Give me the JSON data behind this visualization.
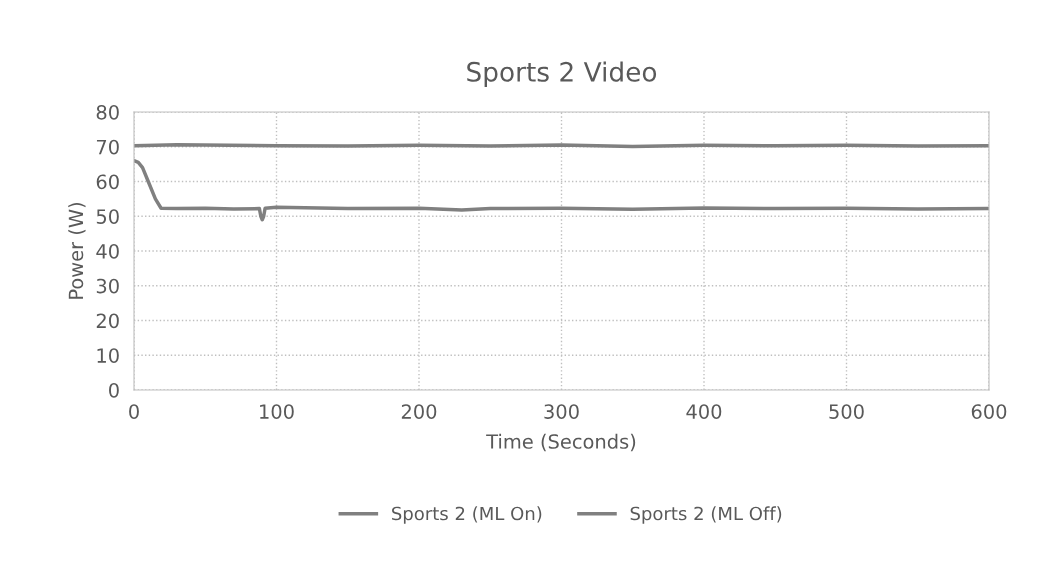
{
  "chart_data": {
    "type": "line",
    "title": "Sports 2 Video",
    "xlabel": "Time (Seconds)",
    "ylabel": "Power (W)",
    "xlim": [
      0,
      600
    ],
    "xticks": [
      0,
      100,
      200,
      300,
      400,
      500,
      600
    ],
    "ylim": [
      0,
      80
    ],
    "yticks": [
      0,
      10,
      20,
      30,
      40,
      50,
      60,
      70,
      80
    ],
    "grid": true,
    "legend": "bottom",
    "marker": "none",
    "line_style": "solid",
    "series": [
      {
        "name": "Sports 2 (ML On)",
        "color": "#808080",
        "x": [
          0,
          3,
          6,
          10,
          15,
          19,
          30,
          50,
          70,
          88,
          89,
          90,
          91,
          92,
          100,
          150,
          200,
          230,
          250,
          300,
          350,
          400,
          450,
          500,
          550,
          600
        ],
        "values": [
          66,
          65.5,
          64,
          60,
          55,
          52.3,
          52.2,
          52.3,
          52.1,
          52.2,
          50,
          49,
          50,
          52.3,
          52.6,
          52.2,
          52.3,
          51.8,
          52.2,
          52.3,
          52,
          52.4,
          52.2,
          52.3,
          52.1,
          52.2
        ]
      },
      {
        "name": "Sports 2 (ML Off)",
        "color": "#808080",
        "x": [
          0,
          30,
          100,
          150,
          200,
          250,
          300,
          350,
          400,
          450,
          500,
          550,
          600
        ],
        "values": [
          70.3,
          70.6,
          70.3,
          70.2,
          70.4,
          70.2,
          70.5,
          70.1,
          70.4,
          70.3,
          70.4,
          70.2,
          70.3
        ]
      }
    ]
  }
}
